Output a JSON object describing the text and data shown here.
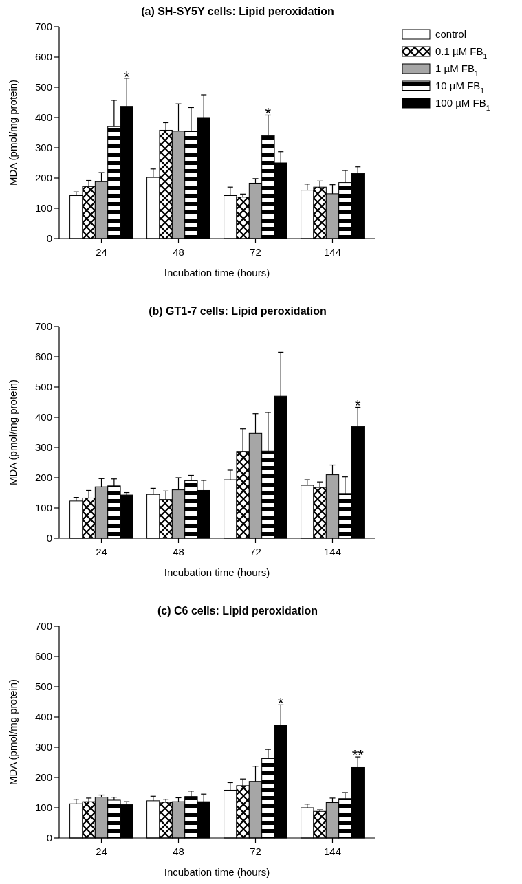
{
  "chart_data": [
    {
      "type": "bar",
      "title": "(a) SH-SY5Y cells: Lipid peroxidation",
      "xlabel": "Incubation time (hours)",
      "ylabel": "MDA (pmol/mg protein)",
      "categories": [
        "24",
        "48",
        "72",
        "144"
      ],
      "ylim": [
        0,
        700
      ],
      "yticks": [
        0,
        100,
        200,
        300,
        400,
        500,
        600,
        700
      ],
      "legend": "right",
      "annotations": [
        "*",
        "*"
      ],
      "series": [
        {
          "name": "control",
          "color": "#ffffff",
          "values": [
            142,
            202,
            142,
            160
          ],
          "errors": [
            [
              142,
              154
            ],
            [
              202,
              230
            ],
            [
              142,
              170
            ],
            [
              160,
              180
            ]
          ]
        },
        {
          "name": "0.1 µM FB$_{1}$",
          "color": "#000000",
          "values": [
            172,
            358,
            137,
            170
          ],
          "errors": [
            [
              172,
              192
            ],
            [
              358,
              383
            ],
            [
              137,
              147
            ],
            [
              170,
              190
            ]
          ]
        },
        {
          "name": "1 µM FB$_{1}$",
          "color": "#a6a6a6",
          "values": [
            188,
            355,
            183,
            148
          ],
          "errors": [
            [
              188,
              218
            ],
            [
              355,
              445
            ],
            [
              183,
              198
            ],
            [
              148,
              178
            ]
          ]
        },
        {
          "name": "10 µM FB$_{1}$",
          "color": "#000000",
          "values": [
            370,
            355,
            340,
            185
          ],
          "errors": [
            [
              370,
              457
            ],
            [
              355,
              433
            ],
            [
              340,
              408
            ],
            [
              185,
              225
            ]
          ]
        },
        {
          "name": "100 µM FB$_{1}$",
          "color": "#000000",
          "values": [
            437,
            400,
            250,
            215
          ],
          "errors": [
            [
              437,
              530
            ],
            [
              400,
              475
            ],
            [
              250,
              287
            ],
            [
              215,
              237
            ]
          ]
        }
      ]
    },
    {
      "type": "bar",
      "title": "(b) GT1-7 cells: Lipid peroxidation",
      "xlabel": "Incubation time (hours)",
      "ylabel": "MDA (pmol/mg protein)",
      "categories": [
        "24",
        "48",
        "72",
        "144"
      ],
      "ylim": [
        0,
        700
      ],
      "yticks": [
        0,
        100,
        200,
        300,
        400,
        500,
        600,
        700
      ],
      "annotations": [
        "*"
      ],
      "series": [
        {
          "color": "#ffffff",
          "values": [
            123,
            145,
            193,
            175
          ],
          "errors": [
            [
              123,
              135
            ],
            [
              145,
              165
            ],
            [
              193,
              225
            ],
            [
              175,
              193
            ]
          ]
        },
        {
          "color": "#000000",
          "values": [
            133,
            128,
            287,
            168
          ],
          "errors": [
            [
              133,
              158
            ],
            [
              128,
              156
            ],
            [
              287,
              362
            ],
            [
              168,
              186
            ]
          ]
        },
        {
          "color": "#a6a6a6",
          "values": [
            170,
            160,
            347,
            210
          ],
          "errors": [
            [
              170,
              197
            ],
            [
              160,
              200
            ],
            [
              347,
              412
            ],
            [
              210,
              242
            ]
          ]
        },
        {
          "color": "#000000",
          "values": [
            173,
            190,
            288,
            148
          ],
          "errors": [
            [
              173,
              196
            ],
            [
              190,
              208
            ],
            [
              288,
              416
            ],
            [
              148,
              203
            ]
          ]
        },
        {
          "color": "#000000",
          "values": [
            143,
            158,
            470,
            370
          ],
          "errors": [
            [
              143,
              151
            ],
            [
              158,
              191
            ],
            [
              470,
              615
            ],
            [
              370,
              433
            ]
          ]
        }
      ]
    },
    {
      "type": "bar",
      "title": "(c) C6 cells: Lipid peroxidation",
      "xlabel": "Incubation time (hours)",
      "ylabel": "MDA (pmol/mg protein)",
      "categories": [
        "24",
        "48",
        "72",
        "144"
      ],
      "ylim": [
        0,
        700
      ],
      "yticks": [
        0,
        100,
        200,
        300,
        400,
        500,
        600,
        700
      ],
      "annotations": [
        "*",
        "**"
      ],
      "series": [
        {
          "color": "#ffffff",
          "values": [
            113,
            123,
            158,
            100
          ],
          "errors": [
            [
              113,
              128
            ],
            [
              123,
              138
            ],
            [
              158,
              183
            ],
            [
              100,
              112
            ]
          ]
        },
        {
          "color": "#000000",
          "values": [
            120,
            118,
            173,
            88
          ],
          "errors": [
            [
              120,
              132
            ],
            [
              118,
              128
            ],
            [
              173,
              195
            ],
            [
              88,
              93
            ]
          ]
        },
        {
          "color": "#a6a6a6",
          "values": [
            135,
            120,
            187,
            117
          ],
          "errors": [
            [
              135,
              142
            ],
            [
              120,
              133
            ],
            [
              187,
              237
            ],
            [
              117,
              132
            ]
          ]
        },
        {
          "color": "#000000",
          "values": [
            125,
            137,
            263,
            130
          ],
          "errors": [
            [
              125,
              135
            ],
            [
              137,
              155
            ],
            [
              263,
              293
            ],
            [
              130,
              150
            ]
          ]
        },
        {
          "color": "#000000",
          "values": [
            110,
            120,
            373,
            233
          ],
          "errors": [
            [
              110,
              120
            ],
            [
              120,
              145
            ],
            [
              373,
              440
            ],
            [
              233,
              268
            ]
          ]
        }
      ]
    }
  ]
}
